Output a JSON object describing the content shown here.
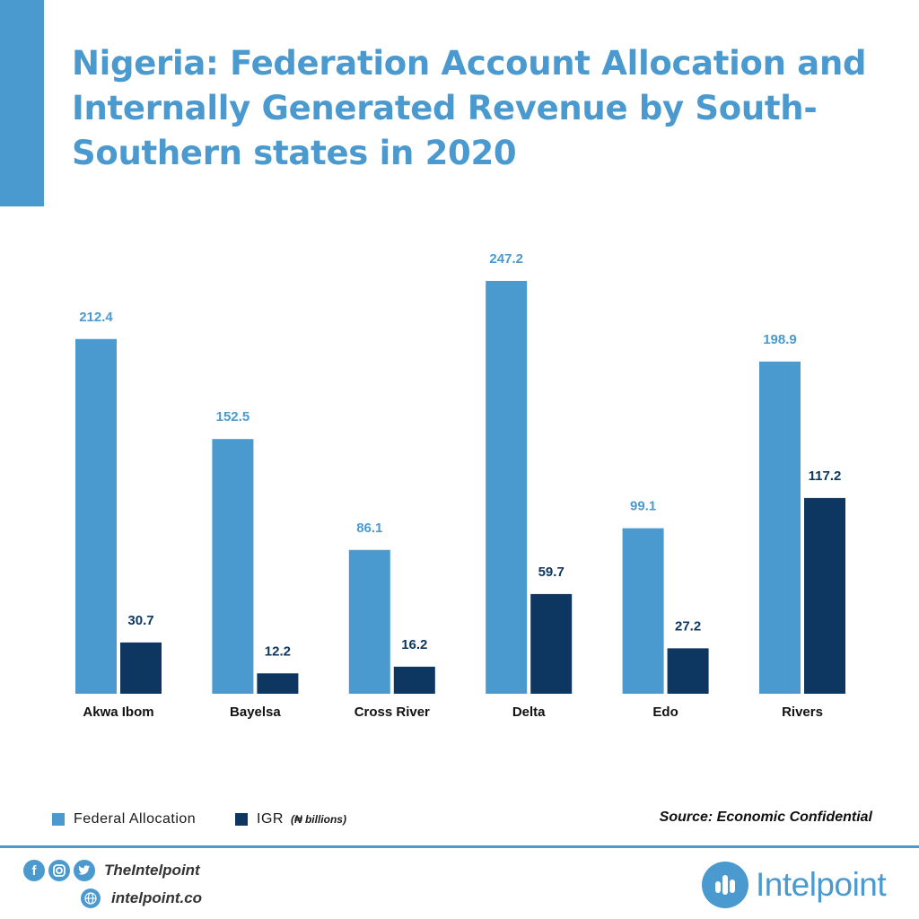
{
  "title_lines": [
    "Nigeria: Federation Account Allocation and",
    "Internally Generated Revenue by South-",
    "Southern states in 2020"
  ],
  "colors": {
    "accent": "#4b9acf",
    "federal": "#4b9acf",
    "igr": "#0d3761"
  },
  "chart_data": {
    "type": "bar",
    "title": "Nigeria: Federation Account Allocation and Internally Generated Revenue by South-Southern states in 2020",
    "categories": [
      "Akwa Ibom",
      "Bayelsa",
      "Cross River",
      "Delta",
      "Edo",
      "Rivers"
    ],
    "series": [
      {
        "name": "Federal Allocation",
        "values": [
          212.4,
          152.5,
          86.1,
          247.2,
          99.1,
          198.9
        ]
      },
      {
        "name": "IGR",
        "values": [
          30.7,
          12.2,
          16.2,
          59.7,
          27.2,
          117.2
        ]
      }
    ],
    "unit_note": "(₦ billions)",
    "ylim": [
      0,
      247.2
    ],
    "grid": false,
    "legend": "bottom-left",
    "source": "Source: Economic Confidential"
  },
  "footer": {
    "icons": [
      "facebook-icon",
      "instagram-icon",
      "twitter-icon",
      "globe-icon"
    ],
    "handle": "TheIntelpoint",
    "website": "intelpoint.co",
    "brand": "Intelpoint"
  }
}
